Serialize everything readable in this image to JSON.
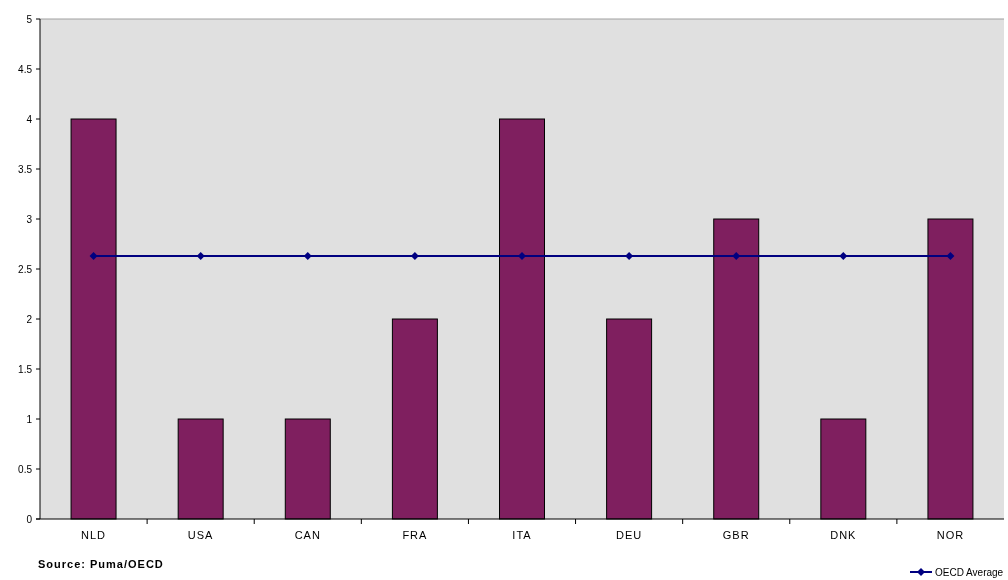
{
  "chart_data": {
    "type": "bar",
    "categories": [
      "NLD",
      "USA",
      "CAN",
      "FRA",
      "ITA",
      "DEU",
      "GBR",
      "DNK",
      "NOR"
    ],
    "series": [
      {
        "color": "#7f1f5f",
        "values": [
          4,
          1,
          1,
          2,
          4,
          2,
          3,
          1,
          3
        ]
      },
      {
        "type": "line",
        "name": "OECD Average",
        "color": "#000080",
        "marker": "diamond",
        "values": [
          2.63,
          2.63,
          2.63,
          2.63,
          2.63,
          2.63,
          2.63,
          2.63,
          2.63
        ]
      }
    ],
    "ylim": [
      0,
      5
    ],
    "yticks": [
      0,
      0.5,
      1,
      1.5,
      2,
      2.5,
      3,
      3.5,
      4,
      4.5,
      5
    ],
    "legend": "bottom right",
    "grid": false,
    "annotations": [
      "Source: Puma/OECD"
    ]
  }
}
